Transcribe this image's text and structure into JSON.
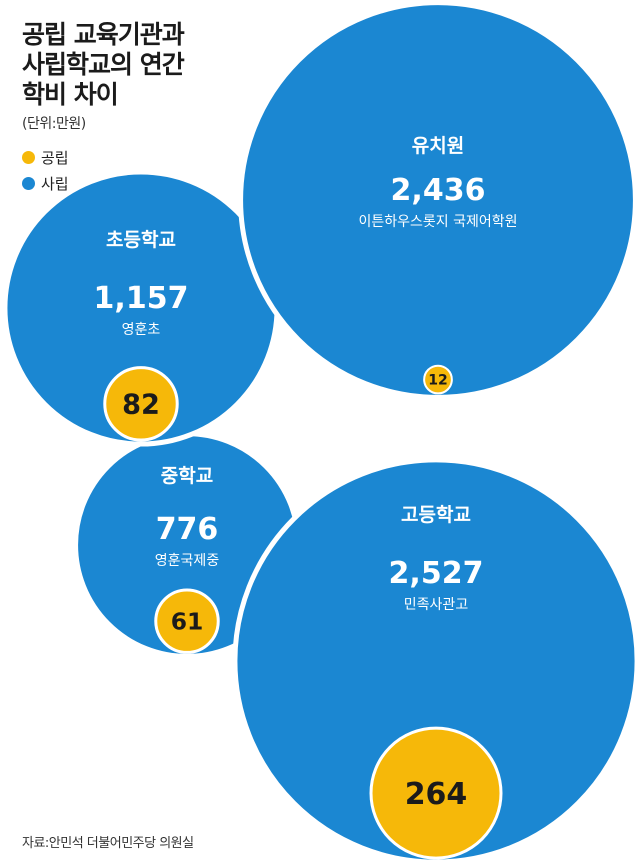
{
  "title_lines": [
    "공립 교육기관과",
    "사립학교의 연간",
    "학비 차이"
  ],
  "unit": "(단위:만원)",
  "legend": [
    {
      "label": "공립",
      "color": "#f6b809"
    },
    {
      "label": "사립",
      "color": "#1b87d2"
    }
  ],
  "source": "자료:안민석 더불어민주당 의원실",
  "chart_data": {
    "type": "bubble",
    "title": "공립 교육기관과 사립학교의 연간 학비 차이",
    "unit": "만원",
    "categories": [
      "유치원",
      "초등학교",
      "중학교",
      "고등학교"
    ],
    "series": [
      {
        "name": "사립",
        "color": "#1b87d2",
        "values": [
          2436,
          1157,
          776,
          2527
        ]
      },
      {
        "name": "공립",
        "color": "#f6b809",
        "values": [
          12,
          82,
          61,
          264
        ]
      }
    ],
    "private_formatted": [
      "2,436",
      "1,157",
      "776",
      "2,527"
    ],
    "public_formatted": [
      "12",
      "82",
      "61",
      "264"
    ],
    "private_example": [
      "이튼하우스롯지 국제어학원",
      "영훈초",
      "영훈국제중",
      "민족사관고"
    ]
  }
}
